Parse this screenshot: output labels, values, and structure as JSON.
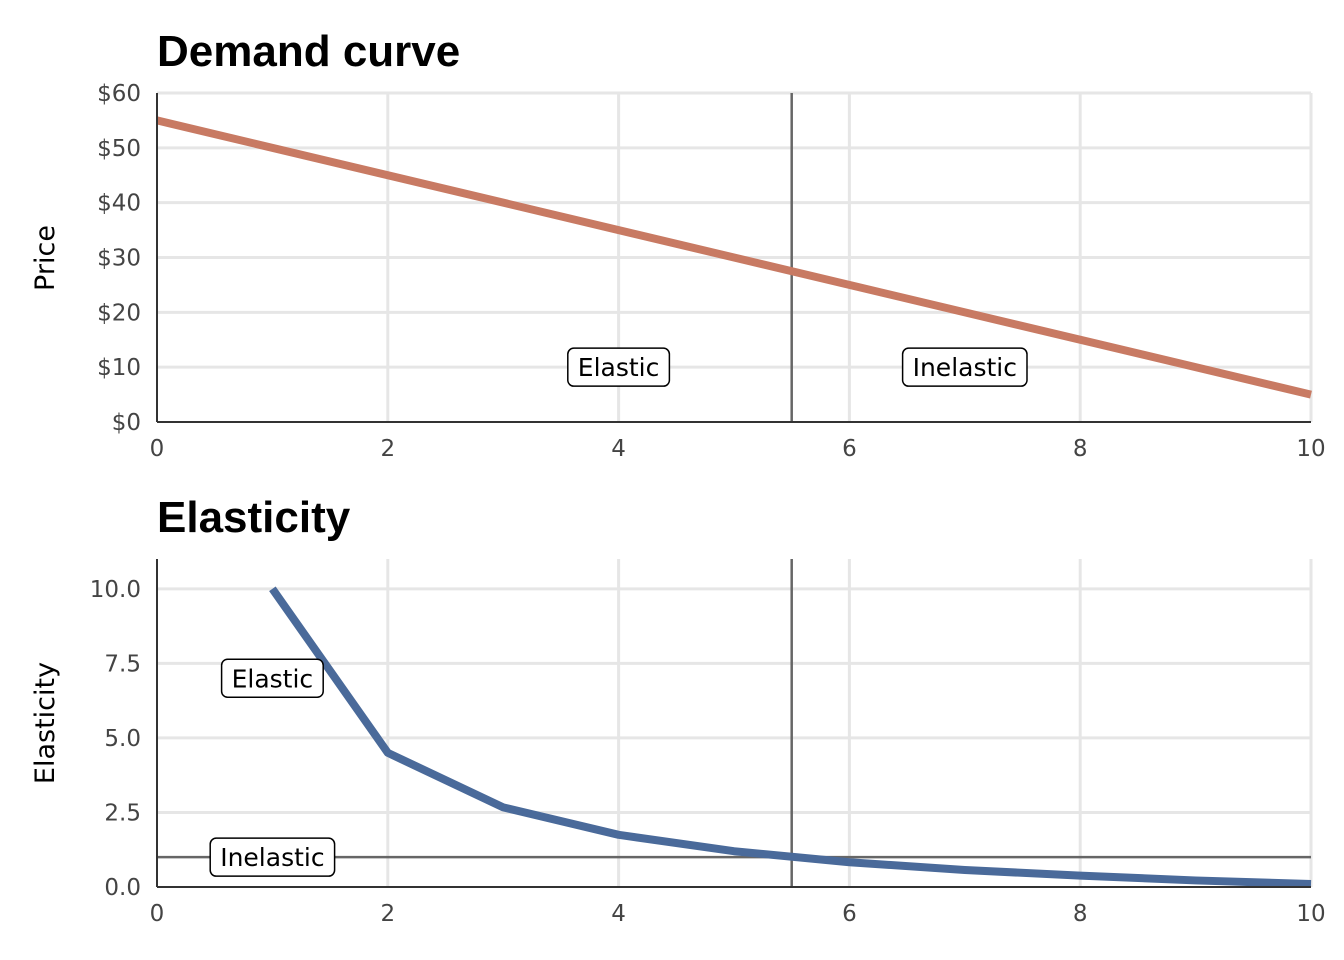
{
  "chart_data": [
    {
      "type": "line",
      "title": "Demand curve",
      "xlabel": "",
      "ylabel": "Price",
      "xlim": [
        0,
        10
      ],
      "ylim": [
        0,
        60
      ],
      "x_ticks": [
        "0",
        "2",
        "4",
        "6",
        "8",
        "10"
      ],
      "y_ticks": [
        "$0",
        "$10",
        "$20",
        "$30",
        "$40",
        "$50",
        "$60"
      ],
      "grid": true,
      "series": [
        {
          "color": "#c87a63",
          "x": [
            0,
            10
          ],
          "y": [
            55,
            5
          ]
        }
      ],
      "vline": {
        "x": 5.5,
        "color": "#666666"
      },
      "annotations": [
        {
          "text": "Elastic",
          "x": 4,
          "y": 10
        },
        {
          "text": "Inelastic",
          "x": 7,
          "y": 10
        }
      ]
    },
    {
      "type": "line",
      "title": "Elasticity",
      "xlabel": "",
      "ylabel": "Elasticity",
      "xlim": [
        0,
        10
      ],
      "ylim": [
        0,
        11
      ],
      "x_ticks": [
        "0",
        "2",
        "4",
        "6",
        "8",
        "10"
      ],
      "y_ticks": [
        "0.0",
        "2.5",
        "5.0",
        "7.5",
        "10.0"
      ],
      "grid": true,
      "series": [
        {
          "color": "#4a6a9a",
          "x": [
            1,
            2,
            3,
            4,
            5,
            6,
            7,
            8,
            9,
            10
          ],
          "y": [
            10,
            4.5,
            2.67,
            1.75,
            1.2,
            0.83,
            0.57,
            0.38,
            0.22,
            0.1
          ]
        }
      ],
      "vline": {
        "x": 5.5,
        "color": "#666666"
      },
      "hline": {
        "y": 1,
        "color": "#666666"
      },
      "annotations": [
        {
          "text": "Elastic",
          "x": 1,
          "y": 7
        },
        {
          "text": "Inelastic",
          "x": 1,
          "y": 1
        }
      ]
    }
  ]
}
